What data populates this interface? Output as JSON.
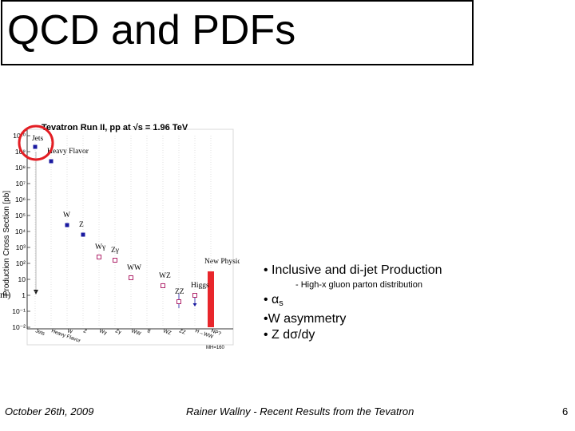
{
  "slide": {
    "title": "QCD and PDFs",
    "partial_label": "m)",
    "bullets": {
      "b1": "• Inclusive and di-jet Production",
      "b1_sub": "- High-x gluon parton distribution",
      "b2_prefix": "• ",
      "b2_alpha": "α",
      "b2_sub": "s",
      "b3": "•W asymmetry",
      "b4_prefix": "• Z d",
      "b4_sigma": "σ",
      "b4_suffix": "/dy"
    },
    "footer": {
      "date": "October 26th, 2009",
      "author": "Rainer Wallny - Recent Results from the Tevatron",
      "page": "6"
    }
  },
  "chart_data": {
    "type": "scatter",
    "title": "Tevatron Run II, pp at √s = 1.96 TeV",
    "ylabel": "Production Cross Section [pb]",
    "y_scale": "log",
    "ylim_exp": [
      -2,
      10
    ],
    "y_ticks": [
      "10⁻²",
      "10⁻¹",
      "1",
      "10",
      "10²",
      "10³",
      "10⁴",
      "10⁵",
      "10⁶",
      "10⁷",
      "10⁸",
      "10⁹",
      "10¹⁰"
    ],
    "categories": [
      "Jets",
      "Heavy Flavor",
      "W",
      "Z",
      "Wγ",
      "Zγ",
      "WW",
      "tt",
      "WZ",
      "ZZ",
      "H→WW",
      "NP?"
    ],
    "x_ticks": [
      "Jets",
      "Heavy Flavor",
      "W",
      "Z",
      "Wγ",
      "Zγ",
      "WW",
      "tt̄",
      "WZ",
      "ZZ",
      "H→WW",
      "NP?"
    ],
    "mass_note": "MH=160",
    "points": [
      {
        "category": "Jets",
        "label": "Jets",
        "y_exp": 9.3,
        "marker": "filled"
      },
      {
        "category": "Heavy Flavor",
        "label": "Heavy Flavor",
        "y_exp": 8.4,
        "marker": "filled"
      },
      {
        "category": "W",
        "label": "W",
        "y_exp": 4.4,
        "marker": "filled"
      },
      {
        "category": "Z",
        "label": "Z",
        "y_exp": 3.8,
        "marker": "filled"
      },
      {
        "category": "Wγ",
        "label": "Wγ",
        "y_exp": 2.4,
        "marker": "open"
      },
      {
        "category": "Zγ",
        "label": "Zγ",
        "y_exp": 2.2,
        "marker": "open"
      },
      {
        "category": "WW",
        "label": "WW",
        "y_exp": 1.1,
        "marker": "open"
      },
      {
        "category": "WZ",
        "label": "WZ",
        "y_exp": 0.6,
        "marker": "open"
      },
      {
        "category": "ZZ",
        "label": "ZZ",
        "y_exp": -0.4,
        "marker": "open",
        "err_low": -0.8,
        "err_high": 0.1
      },
      {
        "category": "H→WW",
        "label": "Higgs",
        "y_exp": 0.0,
        "marker": "open",
        "limit": true
      }
    ],
    "annotations": {
      "new_physics": "New Physics?",
      "np_band": {
        "category": "NP?",
        "y_from_exp": -2,
        "y_to_exp": 1.5,
        "color": "#e8262b"
      }
    },
    "highlight": {
      "target": "Jets",
      "color": "#e31e24",
      "shape": "circle"
    },
    "colors": {
      "filled": "#1a1aa0",
      "open": "#b0256b"
    }
  }
}
